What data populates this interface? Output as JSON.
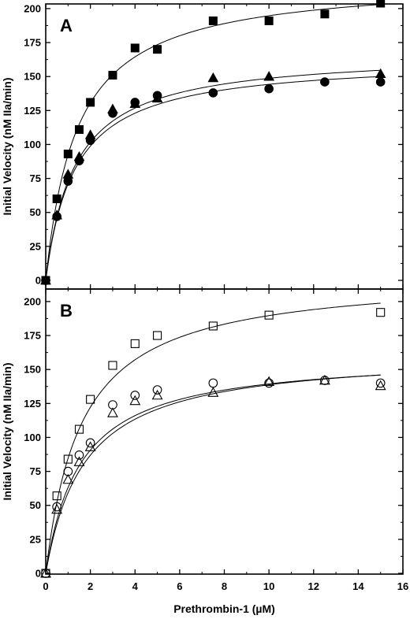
{
  "chart_data": [
    {
      "type": "scatter",
      "panel_label": "A",
      "title": "",
      "xlabel": "",
      "ylabel": "Initial Velocity (nM IIa/min)",
      "xlim": [
        0,
        16
      ],
      "ylim": [
        0,
        205
      ],
      "yticks": [
        0,
        25,
        50,
        75,
        100,
        125,
        150,
        175,
        200
      ],
      "grid": false,
      "legend": "none",
      "series": [
        {
          "marker": "square-filled",
          "x": [
            0,
            0.5,
            1,
            1.5,
            2,
            3,
            4,
            5,
            7.5,
            10,
            12.5,
            15
          ],
          "y": [
            0,
            60,
            93,
            111,
            131,
            151,
            171,
            170,
            191,
            191,
            196,
            204
          ],
          "fit": {
            "vmax": 222,
            "km": 1.4
          }
        },
        {
          "marker": "triangle-filled",
          "x": [
            0,
            0.5,
            1,
            1.5,
            2,
            3,
            4,
            5,
            7.5,
            10,
            15
          ],
          "y": [
            0,
            48,
            78,
            91,
            107,
            126,
            130,
            134,
            149,
            150,
            152
          ],
          "fit": {
            "vmax": 168,
            "km": 1.3
          }
        },
        {
          "marker": "circle-filled",
          "x": [
            0,
            0.5,
            1,
            1.5,
            2,
            3,
            4,
            5,
            7.5,
            10,
            12.5,
            15
          ],
          "y": [
            0,
            47,
            73,
            88,
            103,
            123,
            131,
            136,
            138,
            141,
            146,
            146
          ],
          "fit": {
            "vmax": 163,
            "km": 1.3
          }
        }
      ]
    },
    {
      "type": "scatter",
      "panel_label": "B",
      "title": "",
      "xlabel": "Prethrombin-1 (µM)",
      "ylabel": "Initial Velocity (nM IIa/min)",
      "xlim": [
        0,
        16
      ],
      "xticks": [
        0,
        2,
        4,
        6,
        8,
        10,
        12,
        14,
        16
      ],
      "ylim": [
        0,
        205
      ],
      "yticks": [
        0,
        25,
        50,
        75,
        100,
        125,
        150,
        175,
        200
      ],
      "grid": false,
      "legend": "none",
      "series": [
        {
          "marker": "square-open",
          "x": [
            0,
            0.5,
            1,
            1.5,
            2,
            3,
            4,
            5,
            7.5,
            10,
            15
          ],
          "y": [
            0,
            57,
            84,
            106,
            128,
            153,
            169,
            175,
            182,
            190,
            192
          ],
          "fit": {
            "vmax": 220,
            "km": 1.6
          }
        },
        {
          "marker": "circle-open",
          "x": [
            0,
            0.5,
            1,
            1.5,
            2,
            3,
            4,
            5,
            7.5,
            10,
            12.5,
            15
          ],
          "y": [
            0,
            49,
            75,
            87,
            96,
            124,
            131,
            135,
            140,
            140,
            142,
            140
          ],
          "fit": {
            "vmax": 161,
            "km": 1.55
          }
        },
        {
          "marker": "triangle-open",
          "x": [
            0,
            0.5,
            1,
            1.5,
            2,
            3,
            4,
            5,
            7.5,
            10,
            12.5,
            15
          ],
          "y": [
            0,
            47,
            69,
            82,
            93,
            118,
            127,
            131,
            133,
            141,
            142,
            138
          ],
          "fit": {
            "vmax": 163,
            "km": 1.75
          }
        }
      ]
    }
  ]
}
